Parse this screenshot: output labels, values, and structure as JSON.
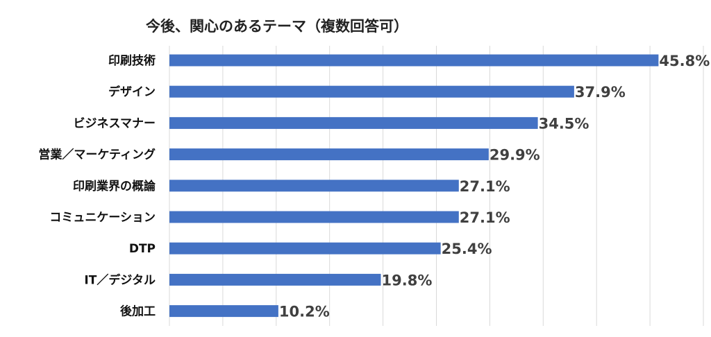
{
  "chart_data": {
    "type": "bar",
    "orientation": "horizontal",
    "title": "今後、関心のあるテーマ（複数回答可）",
    "categories": [
      "印刷技術",
      "デザイン",
      "ビジネスマナー",
      "営業／マーケティング",
      "印刷業界の概論",
      "コミュニケーション",
      "DTP",
      "IT／デジタル",
      "後加工"
    ],
    "values": [
      45.8,
      37.9,
      34.5,
      29.9,
      27.1,
      27.1,
      25.4,
      19.8,
      10.2
    ],
    "value_labels": [
      "45.8%",
      "37.9%",
      "34.5%",
      "29.9%",
      "27.1%",
      "27.1%",
      "25.4%",
      "19.8%",
      "10.2%"
    ],
    "xlim": [
      0,
      50
    ],
    "x_grid_step": 5,
    "grid": true,
    "bar_color": "#4472C4",
    "grid_color": "#D9D9D9",
    "xlabel": "",
    "ylabel": ""
  }
}
